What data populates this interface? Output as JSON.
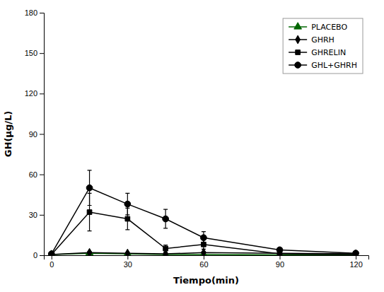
{
  "chart_data": {
    "type": "line",
    "xlabel": "Tiempo(min)",
    "ylabel": "GH(μg/L)",
    "x": [
      0,
      15,
      30,
      45,
      60,
      90,
      120
    ],
    "series": [
      {
        "name": "PLACEBO",
        "color": "#006600",
        "marker": "triangle",
        "values": [
          0.5,
          1.5,
          1.0,
          0.5,
          0.5,
          0.3,
          0.3
        ],
        "errors": [
          0.3,
          0.8,
          0.5,
          0.3,
          0.3,
          0.2,
          0.2
        ]
      },
      {
        "name": "GHRH",
        "color": "#000000",
        "marker": "diamond",
        "values": [
          0.5,
          2.0,
          1.5,
          1.0,
          2.0,
          1.5,
          1.0
        ],
        "errors": [
          0.3,
          0.8,
          0.5,
          0.4,
          0.5,
          0.5,
          0.3
        ]
      },
      {
        "name": "GHRELIN",
        "color": "#000000",
        "marker": "square",
        "values": [
          0.5,
          32.0,
          27.0,
          5.0,
          8.0,
          1.0,
          0.5
        ],
        "errors": [
          0.3,
          14.0,
          8.0,
          2.5,
          3.5,
          0.5,
          0.3
        ]
      },
      {
        "name": "GHL+GHRH",
        "color": "#000000",
        "marker": "circle",
        "values": [
          1.0,
          50.0,
          38.0,
          27.0,
          13.0,
          4.0,
          1.5
        ],
        "errors": [
          0.3,
          13.0,
          8.0,
          7.0,
          4.5,
          1.5,
          0.5
        ]
      }
    ],
    "xlim": [
      -3,
      125
    ],
    "xticks": [
      0,
      30,
      60,
      90,
      120
    ],
    "ylim": [
      0,
      180
    ],
    "yticks": [
      0,
      30,
      60,
      90,
      120,
      150,
      180
    ],
    "legend": "upper right",
    "grid": false
  }
}
